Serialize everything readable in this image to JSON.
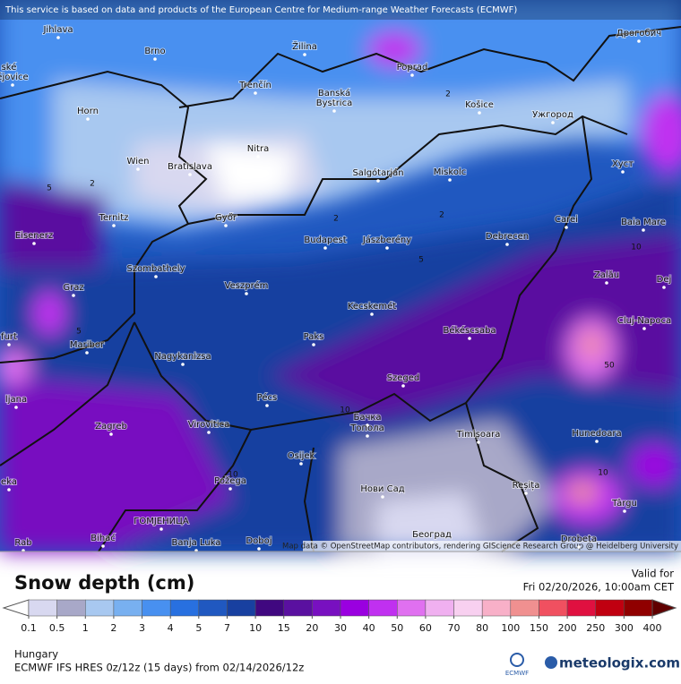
{
  "header": {
    "notice": "This service is based on data and products of the European Centre for Medium-range Weather Forecasts (ECMWF)"
  },
  "map": {
    "places": [
      "Jihlava",
      "Brno",
      "Žilina",
      "Poprad",
      "Дрогобич",
      "ské",
      "ějovice",
      "Trenčín",
      "Banská",
      "Bystrica",
      "Košice",
      "Ужгород",
      "Horn",
      "Nitra",
      "Wien",
      "Bratislava",
      "Salgótarján",
      "Miskolc",
      "Хуст",
      "Ternitz",
      "Győr",
      "Carei",
      "Baia Mare",
      "Eisenerz",
      "Budapest",
      "Jászberény",
      "Debrecen",
      "Szombathely",
      "Zalău",
      "Graz",
      "Veszprém",
      "Dej",
      "Kecskemét",
      "Cluj-Napoca",
      "furt",
      "Maribor",
      "Paks",
      "Békéscsaba",
      "Nagykanizsa",
      "Szeged",
      "ljana",
      "Pécs",
      "Бачка",
      "Топола",
      "Zagreb",
      "Virovitica",
      "Timișoara",
      "Hunedoara",
      "Osijek",
      "eka",
      "Požega",
      "Нови Сад",
      "Reșița",
      "Târgu",
      "ГОМЈЕНИЦА",
      "Bihać",
      "Banja Luka",
      "Doboj",
      "Београд",
      "Drobeta",
      "Rab"
    ],
    "contour_labels": [
      2,
      2,
      2,
      2,
      5,
      5,
      10,
      10,
      50,
      10,
      10,
      5
    ],
    "attribution": "Map data © OpenStreetMap contributors, rendering GIScience Research Group @ Heidelberg University"
  },
  "legend": {
    "title": "Snow depth (cm)",
    "valid_label": "Valid for",
    "valid_time": "Fri 02/20/2026, 10:00am CET",
    "levels": [
      0.1,
      0.5,
      1,
      2,
      3,
      4,
      5,
      7,
      10,
      15,
      20,
      30,
      40,
      50,
      60,
      70,
      80,
      100,
      150,
      200,
      250,
      300,
      400
    ],
    "colors": [
      "#d8d8f0",
      "#a8a8c8",
      "#a8c8f0",
      "#78b0f0",
      "#4890f0",
      "#2870e0",
      "#2058c0",
      "#1840a0",
      "#400880",
      "#5a10a0",
      "#7810c0",
      "#9a00e0",
      "#c030f0",
      "#e070f0",
      "#f0b0f0",
      "#f8d0f0",
      "#f8b0c8",
      "#f09090",
      "#f05060",
      "#e01040",
      "#c00010",
      "#900000"
    ],
    "below_color": "#ffffff",
    "above_color": "#600000"
  },
  "footer": {
    "region": "Hungary",
    "model": "ECMWF IFS HRES 0z/12z (15 days) from 02/14/2026/12z",
    "logo_ecmwf": "ECMWF",
    "logo_site": "meteologix.com"
  }
}
